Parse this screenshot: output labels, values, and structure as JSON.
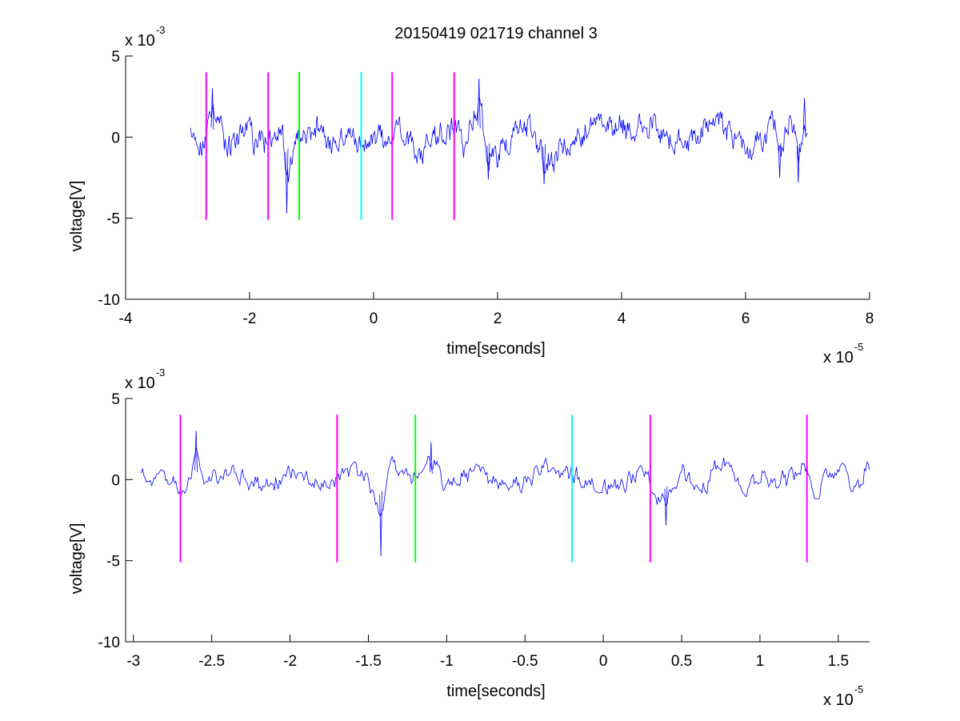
{
  "figure": {
    "title": "20150419 021719 channel 3",
    "background": "#ffffff",
    "trace_color": "#0000ff"
  },
  "chart_data": [
    {
      "type": "line",
      "title": "20150419 021719 channel 3",
      "xlabel": "time[seconds]",
      "ylabel": "voltage[V]",
      "x_multiplier": {
        "base": "x 10",
        "exp": "-5"
      },
      "y_multiplier": {
        "base": "x 10",
        "exp": "-3"
      },
      "xlim": [
        -4,
        8
      ],
      "ylim": [
        -10,
        5
      ],
      "xticks": [
        -4,
        -2,
        0,
        2,
        4,
        6,
        8
      ],
      "xtick_labels": [
        "-4",
        "-2",
        "0",
        "2",
        "4",
        "6",
        "8"
      ],
      "yticks": [
        -10,
        -5,
        0,
        5
      ],
      "ytick_labels": [
        "-10",
        "-5",
        "0",
        "5"
      ],
      "grid": false,
      "series": [
        {
          "color": "#0000ff",
          "x_range": [
            -2.95,
            7.0
          ],
          "x": [
            -2.95,
            -2.8,
            -2.7,
            -2.6,
            -2.4,
            -2.0,
            -1.9,
            -1.7,
            -1.6,
            -1.5,
            -1.4,
            -1.2,
            -1.1,
            -0.9,
            -0.7,
            -0.4,
            -0.2,
            0.0,
            0.2,
            0.4,
            0.7,
            1.0,
            1.3,
            1.45,
            1.7,
            1.85,
            2.5,
            2.75,
            3.5,
            4.5,
            5.0,
            5.5,
            6.0,
            6.5,
            6.55,
            6.7,
            6.85,
            6.95,
            7.0
          ],
          "y": [
            0.9,
            -2.0,
            0.8,
            3.0,
            -1.0,
            1.2,
            -1.5,
            0.3,
            -0.6,
            1.5,
            -4.7,
            1.0,
            -1.0,
            1.4,
            -1.3,
            0.9,
            -1.2,
            0.3,
            -0.8,
            1.2,
            -2.0,
            -0.3,
            1.5,
            -1.2,
            3.6,
            -2.6,
            1.6,
            -2.9,
            1.5,
            0.7,
            -1.1,
            2.1,
            -1.1,
            1.6,
            -2.5,
            1.9,
            -2.8,
            2.4,
            -1.3
          ]
        }
      ],
      "vertical_markers": [
        {
          "x": -2.7,
          "color": "#ff00ff",
          "y_range": [
            -5.1,
            4
          ]
        },
        {
          "x": -1.7,
          "color": "#ff00ff",
          "y_range": [
            -5.1,
            4
          ]
        },
        {
          "x": -1.2,
          "color": "#00ff00",
          "y_range": [
            -5.1,
            4
          ]
        },
        {
          "x": -0.2,
          "color": "#00ffff",
          "y_range": [
            -5.1,
            4
          ]
        },
        {
          "x": 0.3,
          "color": "#ff00ff",
          "y_range": [
            -5.1,
            4
          ]
        },
        {
          "x": 1.3,
          "color": "#ff00ff",
          "y_range": [
            -5.1,
            4
          ]
        }
      ]
    },
    {
      "type": "line",
      "title": "",
      "xlabel": "time[seconds]",
      "ylabel": "voltage[V]",
      "x_multiplier": {
        "base": "x 10",
        "exp": "-5"
      },
      "y_multiplier": {
        "base": "x 10",
        "exp": "-3"
      },
      "xlim": [
        -3.05,
        1.7
      ],
      "ylim": [
        -10,
        5
      ],
      "xticks": [
        -3,
        -2.5,
        -2,
        -1.5,
        -1,
        -0.5,
        0,
        0.5,
        1,
        1.5
      ],
      "xtick_labels": [
        "-3",
        "-2.5",
        "-2",
        "-1.5",
        "-1",
        "-0.5",
        "0",
        "0.5",
        "1",
        "1.5"
      ],
      "yticks": [
        -10,
        -5,
        0,
        5
      ],
      "ytick_labels": [
        "-10",
        "-5",
        "0",
        "5"
      ],
      "grid": false,
      "series": [
        {
          "color": "#0000ff",
          "x_range": [
            -2.95,
            1.7
          ],
          "x": [
            -2.95,
            -2.9,
            -2.85,
            -2.8,
            -2.75,
            -2.7,
            -2.65,
            -2.6,
            -2.55,
            -2.4,
            -2.2,
            -2.0,
            -1.8,
            -1.6,
            -1.5,
            -1.42,
            -1.38,
            -1.3,
            -1.2,
            -1.1,
            -1.0,
            -0.8,
            -0.6,
            -0.4,
            -0.2,
            0.0,
            0.15,
            0.27,
            0.3,
            0.4,
            0.5,
            0.6,
            0.75,
            0.9,
            1.0,
            1.1,
            1.25,
            1.35,
            1.5,
            1.6,
            1.7
          ],
          "y": [
            0.9,
            -0.6,
            1.0,
            -1.2,
            0.6,
            -2.0,
            0.2,
            3.0,
            -0.5,
            1.0,
            -0.8,
            0.8,
            -0.8,
            1.5,
            -0.5,
            -4.7,
            1.0,
            1.5,
            -0.3,
            2.3,
            -0.9,
            1.3,
            -1.0,
            1.1,
            0.6,
            -1.0,
            -0.4,
            1.4,
            -1.3,
            -2.8,
            1.0,
            -1.5,
            2.2,
            -1.9,
            1.3,
            -0.9,
            1.8,
            -1.6,
            1.9,
            -1.4,
            1.9
          ]
        }
      ],
      "vertical_markers": [
        {
          "x": -2.7,
          "color": "#ff00ff",
          "y_range": [
            -5.1,
            4
          ]
        },
        {
          "x": -1.7,
          "color": "#ff00ff",
          "y_range": [
            -5.1,
            4
          ]
        },
        {
          "x": -1.2,
          "color": "#00ff00",
          "y_range": [
            -5.1,
            4
          ]
        },
        {
          "x": -0.2,
          "color": "#00ffff",
          "y_range": [
            -5.1,
            4
          ]
        },
        {
          "x": 0.3,
          "color": "#ff00ff",
          "y_range": [
            -5.1,
            4
          ]
        },
        {
          "x": 1.3,
          "color": "#ff00ff",
          "y_range": [
            -5.1,
            4
          ]
        }
      ]
    }
  ]
}
